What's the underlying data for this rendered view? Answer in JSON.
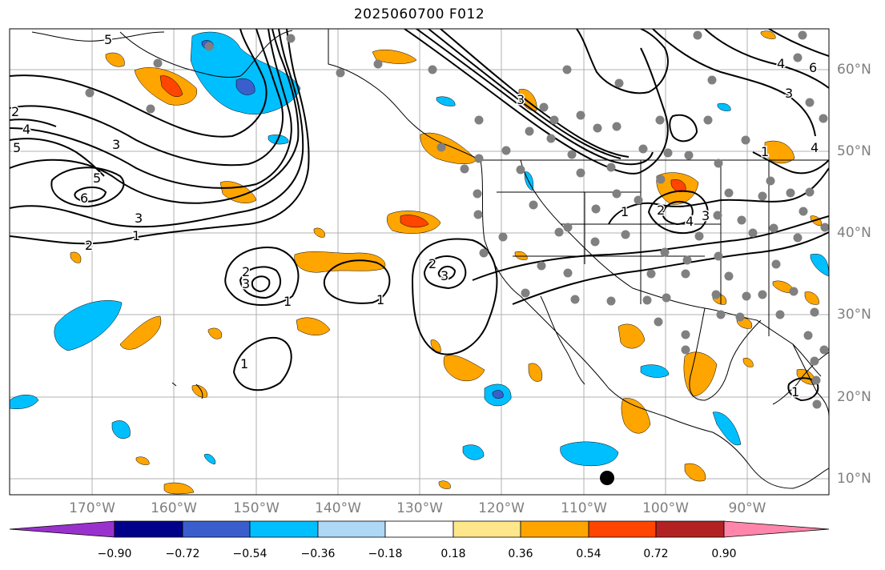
{
  "title": "2025060700 F012",
  "lon_labels": [
    "170°W",
    "160°W",
    "150°W",
    "140°W",
    "130°W",
    "120°W",
    "110°W",
    "100°W",
    "90°W"
  ],
  "lat_labels": [
    "60°N",
    "50°N",
    "40°N",
    "30°N",
    "20°N",
    "10°N"
  ],
  "colorbar": {
    "labels": [
      "−0.90",
      "−0.72",
      "−0.54",
      "−0.36",
      "−0.18",
      "0.18",
      "0.36",
      "0.54",
      "0.72",
      "0.90"
    ],
    "colors": [
      "#9932cc",
      "#00008b",
      "#3a5fcd",
      "#00bfff",
      "#add8f6",
      "#ffffff",
      "#fee78a",
      "#ffa500",
      "#ff4500",
      "#b22222",
      "#ff86aa"
    ]
  },
  "contour_labels": [
    "2",
    "4",
    "5",
    "3",
    "1",
    "5",
    "6",
    "3",
    "2",
    "1",
    "2",
    "3",
    "1",
    "1",
    "2",
    "3",
    "4",
    "3",
    "2",
    "1",
    "4",
    "3",
    "1",
    "1",
    "5",
    "6",
    "4",
    "3"
  ],
  "marker": "black-dot-marker"
}
